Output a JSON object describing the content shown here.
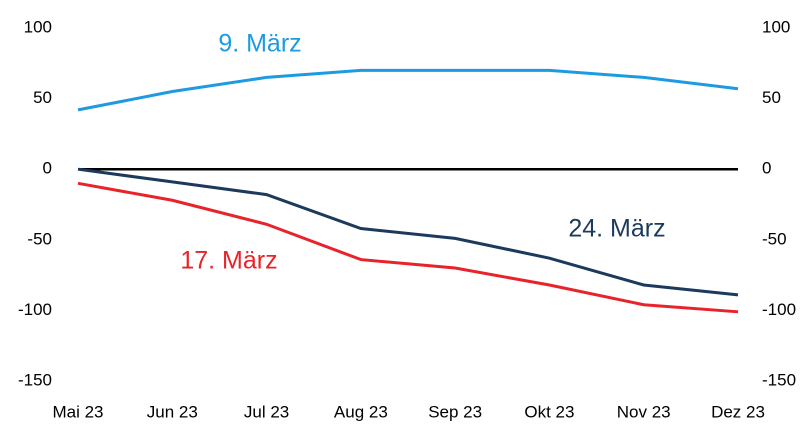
{
  "chart_data": {
    "type": "line",
    "categories": [
      "Mai 23",
      "Jun 23",
      "Jul 23",
      "Aug 23",
      "Sep 23",
      "Okt 23",
      "Nov 23",
      "Dez 23"
    ],
    "series": [
      {
        "name": "9. März",
        "color": "#1e9be0",
        "values": [
          42,
          55,
          65,
          70,
          70,
          70,
          65,
          57
        ]
      },
      {
        "name": "24. März",
        "color": "#1b3a5c",
        "values": [
          0,
          -9,
          -18,
          -42,
          -49,
          -63,
          -82,
          -89
        ]
      },
      {
        "name": "17. März",
        "color": "#e8232a",
        "values": [
          -10,
          -22,
          -39,
          -64,
          -70,
          -82,
          -96,
          -101
        ]
      }
    ],
    "ylim": [
      -150,
      100
    ],
    "yticks": [
      -150,
      -100,
      -50,
      0,
      50,
      100
    ],
    "y2lim": [
      -150,
      100
    ],
    "y2ticks": [
      -150,
      -100,
      -50,
      0,
      50,
      100
    ],
    "zero_line": true,
    "grid": false
  }
}
